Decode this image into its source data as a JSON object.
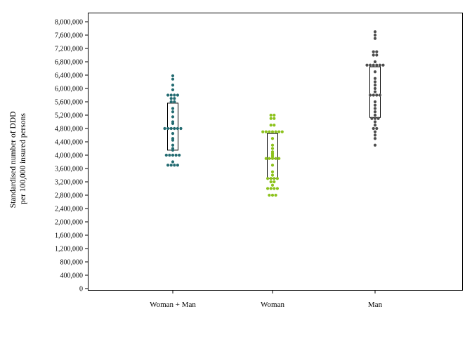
{
  "chart_data": {
    "type": "scatter",
    "subtype": "beeswarm with box",
    "ylabel_lines": [
      "Standardised number of DDD",
      "per 100,000 insured persons"
    ],
    "ylim": [
      0,
      8000000
    ],
    "yticks": [
      0,
      400000,
      800000,
      1200000,
      1600000,
      2000000,
      2400000,
      2800000,
      3200000,
      3600000,
      4000000,
      4400000,
      4800000,
      5200000,
      5600000,
      6000000,
      6400000,
      6800000,
      7200000,
      7600000,
      8000000
    ],
    "ytick_labels": [
      "0",
      "400,000",
      "800,000",
      "1,200,000",
      "1,600,000",
      "2,000,000",
      "2,400,000",
      "2,800,000",
      "3,200,000",
      "3,600,000",
      "4,000,000",
      "4,400,000",
      "4,800,000",
      "5,200,000",
      "5,600,000",
      "6,000,000",
      "6,400,000",
      "6,800,000",
      "7,200,000",
      "7,600,000",
      "8,000,000"
    ],
    "grid": false,
    "legend": "none",
    "categories": [
      "Woman + Man",
      "Woman",
      "Man"
    ],
    "series": [
      {
        "color": "#236b71",
        "box": {
          "q1": 4150000,
          "q3": 5560000,
          "median": 4800000
        },
        "values": [
          6380000,
          6280000,
          6100000,
          5960000,
          5800000,
          5800000,
          5800000,
          5800000,
          5700000,
          5700000,
          5600000,
          5600000,
          5400000,
          5300000,
          5150000,
          5000000,
          4950000,
          4800000,
          4800000,
          4800000,
          4800000,
          4800000,
          4800000,
          4650000,
          4500000,
          4450000,
          4300000,
          4200000,
          4150000,
          4000000,
          4000000,
          4000000,
          4000000,
          4000000,
          3800000,
          3700000,
          3700000,
          3700000,
          3700000
        ]
      },
      {
        "color": "#8cc21c",
        "box": {
          "q1": 3300000,
          "q3": 4650000,
          "median": 3900000
        },
        "values": [
          5200000,
          5200000,
          5100000,
          5100000,
          4900000,
          4900000,
          4700000,
          4700000,
          4700000,
          4700000,
          4700000,
          4700000,
          4700000,
          4500000,
          4300000,
          4200000,
          4100000,
          4050000,
          4000000,
          3950000,
          3900000,
          3900000,
          3900000,
          3900000,
          3900000,
          3700000,
          3500000,
          3400000,
          3300000,
          3300000,
          3300000,
          3300000,
          3200000,
          3200000,
          3100000,
          3000000,
          3000000,
          3000000,
          3000000,
          2800000,
          2800000,
          2800000
        ]
      },
      {
        "color": "#4d4d4d",
        "box": {
          "q1": 5130000,
          "q3": 6650000,
          "median": 5800000
        },
        "values": [
          7700000,
          7600000,
          7500000,
          7100000,
          7100000,
          7000000,
          7000000,
          6800000,
          6700000,
          6700000,
          6700000,
          6700000,
          6700000,
          6700000,
          6500000,
          6300000,
          6200000,
          6100000,
          6000000,
          5900000,
          5800000,
          5800000,
          5800000,
          5800000,
          5600000,
          5500000,
          5400000,
          5300000,
          5200000,
          5100000,
          5100000,
          5100000,
          5000000,
          4900000,
          4800000,
          4800000,
          4700000,
          4600000,
          4500000,
          4300000
        ]
      }
    ]
  }
}
